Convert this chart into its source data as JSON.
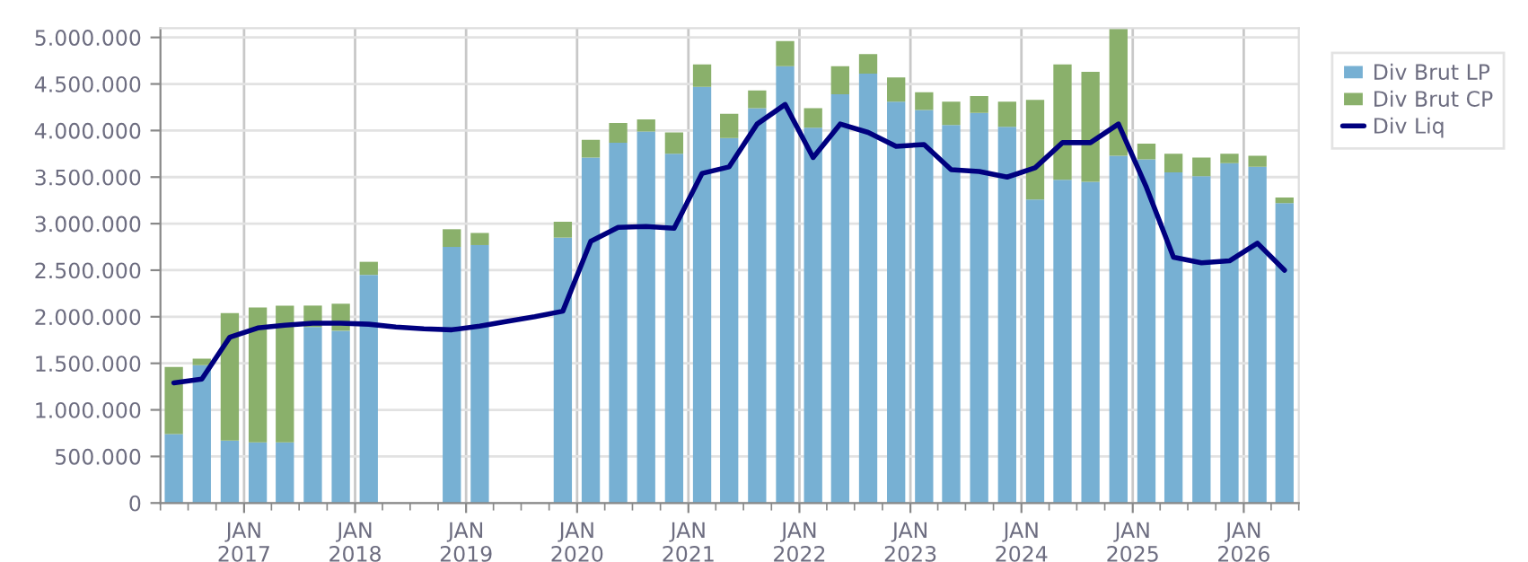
{
  "chart_data": {
    "type": "bar",
    "stacked": true,
    "grid": true,
    "legend": "right",
    "x": [
      "2016-05-15",
      "2016-08-15",
      "2016-11-15",
      "2017-02-15",
      "2017-05-15",
      "2017-08-15",
      "2017-11-15",
      "2018-02-15",
      "2018-11-15",
      "2019-02-15",
      "2019-11-15",
      "2020-02-15",
      "2020-05-15",
      "2020-08-15",
      "2020-11-15",
      "2021-02-15",
      "2021-05-15",
      "2021-08-15",
      "2021-11-15",
      "2022-02-15",
      "2022-05-15",
      "2022-08-15",
      "2022-11-15",
      "2023-02-15",
      "2023-05-15",
      "2023-08-15",
      "2023-11-15",
      "2024-02-15",
      "2024-05-15",
      "2024-08-15",
      "2024-11-15",
      "2025-02-15",
      "2025-05-15",
      "2025-08-15",
      "2025-11-15",
      "2026-02-15",
      "2026-05-15"
    ],
    "series": [
      {
        "name": "Div Brut LP",
        "color": "#77b0d3",
        "values": [
          740000,
          1480000,
          670000,
          650000,
          650000,
          1890000,
          1850000,
          2450000,
          2750000,
          2770000,
          2850000,
          3710000,
          3870000,
          3990000,
          3750000,
          4470000,
          3920000,
          4240000,
          4690000,
          4030000,
          4390000,
          4610000,
          4310000,
          4220000,
          4060000,
          4190000,
          4040000,
          3260000,
          3470000,
          3450000,
          3730000,
          3690000,
          3550000,
          3510000,
          3650000,
          3610000,
          3220000
        ]
      },
      {
        "name": "Div Brut CP",
        "color": "#8ab06b",
        "values": [
          720000,
          70000,
          1370000,
          1450000,
          1470000,
          230000,
          290000,
          140000,
          190000,
          130000,
          170000,
          190000,
          210000,
          130000,
          230000,
          240000,
          260000,
          190000,
          270000,
          210000,
          300000,
          210000,
          260000,
          190000,
          250000,
          180000,
          270000,
          1070000,
          1240000,
          1180000,
          1390000,
          170000,
          200000,
          200000,
          100000,
          120000,
          60000
        ]
      },
      {
        "name": "Div Liq",
        "type": "line",
        "color": "#00007f",
        "x": [
          "2016-05-15",
          "2016-08-15",
          "2016-11-15",
          "2017-02-15",
          "2017-05-15",
          "2017-08-15",
          "2017-11-15",
          "2018-02-15",
          "2018-05-15",
          "2018-08-15",
          "2018-11-15",
          "2019-02-15",
          "2019-05-15",
          "2019-08-15",
          "2019-11-15",
          "2020-02-15",
          "2020-05-15",
          "2020-08-15",
          "2020-11-15",
          "2021-02-15",
          "2021-05-15",
          "2021-08-15",
          "2021-11-15",
          "2022-02-15",
          "2022-05-15",
          "2022-08-15",
          "2022-11-15",
          "2023-02-15",
          "2023-05-15",
          "2023-08-15",
          "2023-11-15",
          "2024-02-15",
          "2024-05-15",
          "2024-08-15",
          "2024-11-15",
          "2025-02-15",
          "2025-05-15",
          "2025-08-15",
          "2025-11-15",
          "2026-02-15",
          "2026-05-15"
        ],
        "values": [
          1290000,
          1330000,
          1780000,
          1880000,
          1910000,
          1930000,
          1930000,
          1920000,
          1890000,
          1870000,
          1860000,
          1900000,
          1950000,
          2000000,
          2060000,
          2810000,
          2960000,
          2970000,
          2950000,
          3540000,
          3610000,
          4070000,
          4280000,
          3710000,
          4070000,
          3980000,
          3830000,
          3850000,
          3580000,
          3560000,
          3500000,
          3600000,
          3870000,
          3870000,
          4070000,
          3390000,
          2640000,
          2580000,
          2600000,
          2790000,
          2500000
        ]
      }
    ],
    "xlim": [
      "2016-04-01",
      "2026-07-01"
    ],
    "xticks": [
      {
        "value": "2016-04-01",
        "label": null
      },
      {
        "value": "2016-07-01",
        "label": null
      },
      {
        "value": "2016-10-01",
        "label": null
      },
      {
        "value": "2017-01-01",
        "label": "JAN\n2017"
      },
      {
        "value": "2017-04-01",
        "label": null
      },
      {
        "value": "2017-07-01",
        "label": null
      },
      {
        "value": "2017-10-01",
        "label": null
      },
      {
        "value": "2018-01-01",
        "label": "JAN\n2018"
      },
      {
        "value": "2018-04-01",
        "label": null
      },
      {
        "value": "2018-07-01",
        "label": null
      },
      {
        "value": "2018-10-01",
        "label": null
      },
      {
        "value": "2019-01-01",
        "label": "JAN\n2019"
      },
      {
        "value": "2019-04-01",
        "label": null
      },
      {
        "value": "2019-07-01",
        "label": null
      },
      {
        "value": "2019-10-01",
        "label": null
      },
      {
        "value": "2020-01-01",
        "label": "JAN\n2020"
      },
      {
        "value": "2020-04-01",
        "label": null
      },
      {
        "value": "2020-07-01",
        "label": null
      },
      {
        "value": "2020-10-01",
        "label": null
      },
      {
        "value": "2021-01-01",
        "label": "JAN\n2021"
      },
      {
        "value": "2021-04-01",
        "label": null
      },
      {
        "value": "2021-07-01",
        "label": null
      },
      {
        "value": "2021-10-01",
        "label": null
      },
      {
        "value": "2022-01-01",
        "label": "JAN\n2022"
      },
      {
        "value": "2022-04-01",
        "label": null
      },
      {
        "value": "2022-07-01",
        "label": null
      },
      {
        "value": "2022-10-01",
        "label": null
      },
      {
        "value": "2023-01-01",
        "label": "JAN\n2023"
      },
      {
        "value": "2023-04-01",
        "label": null
      },
      {
        "value": "2023-07-01",
        "label": null
      },
      {
        "value": "2023-10-01",
        "label": null
      },
      {
        "value": "2024-01-01",
        "label": "JAN\n2024"
      },
      {
        "value": "2024-04-01",
        "label": null
      },
      {
        "value": "2024-07-01",
        "label": null
      },
      {
        "value": "2024-10-01",
        "label": null
      },
      {
        "value": "2025-01-01",
        "label": "JAN\n2025"
      },
      {
        "value": "2025-04-01",
        "label": null
      },
      {
        "value": "2025-07-01",
        "label": null
      },
      {
        "value": "2025-10-01",
        "label": null
      },
      {
        "value": "2026-01-01",
        "label": "JAN\n2026"
      },
      {
        "value": "2026-04-01",
        "label": null
      },
      {
        "value": "2026-07-01",
        "label": null
      }
    ],
    "ylim": [
      0,
      5100000
    ],
    "yticks": [
      0,
      {
        "value": 500000,
        "label": "500.000"
      },
      {
        "value": 1000000,
        "label": "1.000.000"
      },
      {
        "value": 1500000,
        "label": "1.500.000"
      },
      {
        "value": 2000000,
        "label": "2.000.000"
      },
      {
        "value": 2500000,
        "label": "2.500.000"
      },
      {
        "value": 3000000,
        "label": "3.000.000"
      },
      {
        "value": 3500000,
        "label": "3.500.000"
      },
      {
        "value": 4000000,
        "label": "4.000.000"
      },
      {
        "value": 4500000,
        "label": "4.500.000"
      },
      {
        "value": 5000000,
        "label": "5.000.000"
      }
    ]
  }
}
